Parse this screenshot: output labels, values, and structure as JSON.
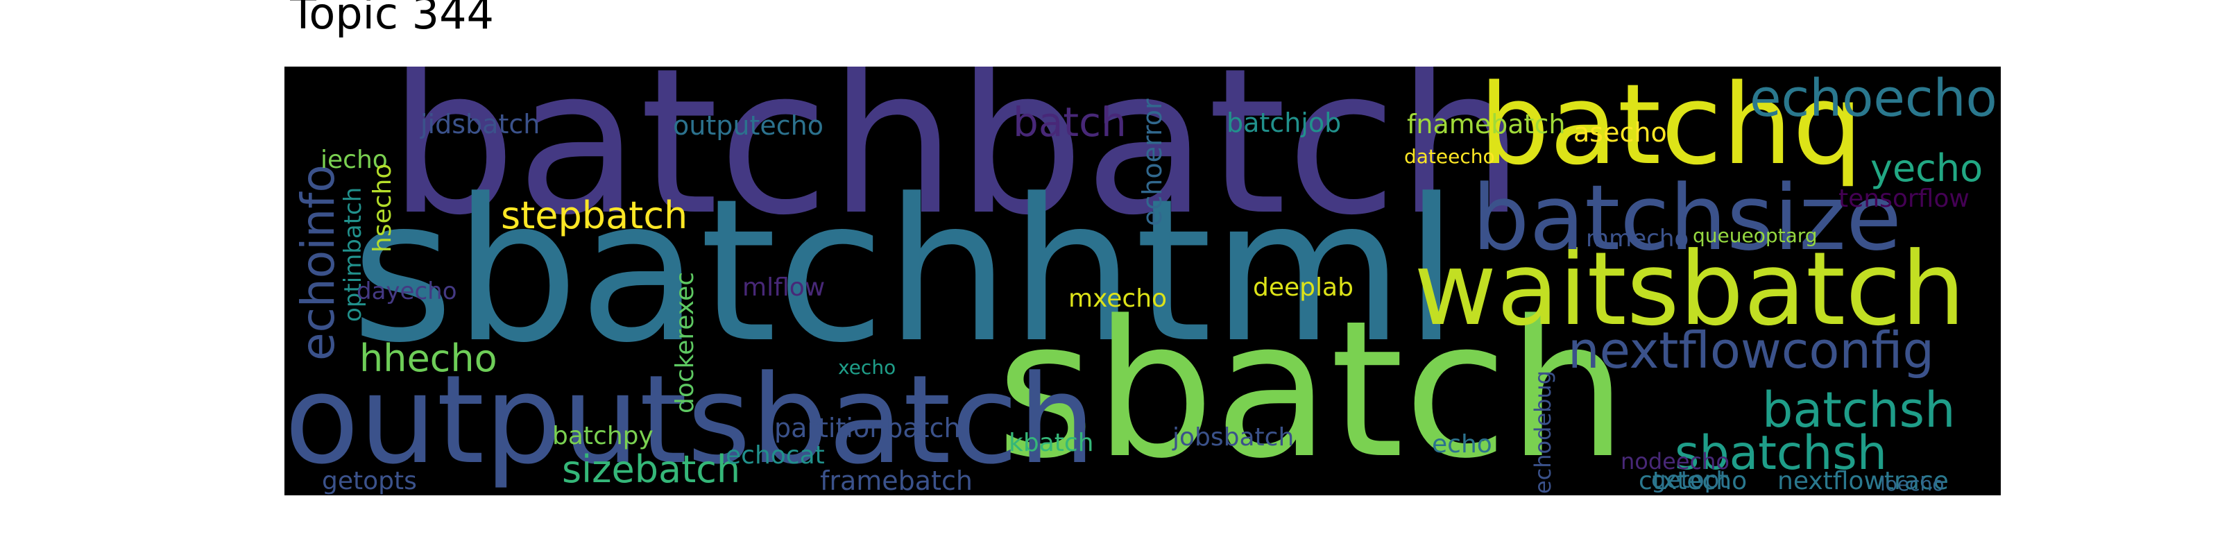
{
  "title": "Topic 344",
  "words": [
    {
      "text": "batchbatch",
      "color": "#443983",
      "weight": 100,
      "rotate": false
    },
    {
      "text": "sbatchhtml",
      "color": "#2c728e",
      "weight": 95,
      "rotate": false
    },
    {
      "text": "sbatch",
      "color": "#7ad151",
      "weight": 92,
      "rotate": false
    },
    {
      "text": "outputsbatch",
      "color": "#3b528b",
      "weight": 62,
      "rotate": false
    },
    {
      "text": "batchq",
      "color": "#dde318",
      "weight": 58,
      "rotate": false
    },
    {
      "text": "waitsbatch",
      "color": "#c2df23",
      "weight": 50,
      "rotate": false
    },
    {
      "text": "batchsize",
      "color": "#3b528b",
      "weight": 46,
      "rotate": false
    },
    {
      "text": "echoinfo",
      "color": "#3b528b",
      "weight": 28,
      "rotate": true
    },
    {
      "text": "echoecho",
      "color": "#2a788e",
      "weight": 26,
      "rotate": false
    },
    {
      "text": "nextflowconfig",
      "color": "#3b528b",
      "weight": 26,
      "rotate": false
    },
    {
      "text": "batchsh",
      "color": "#1f9e89",
      "weight": 25,
      "rotate": false
    },
    {
      "text": "sbatchsh",
      "color": "#1f9e89",
      "weight": 24,
      "rotate": false
    },
    {
      "text": "stepbatch",
      "color": "#fde725",
      "weight": 20,
      "rotate": false
    },
    {
      "text": "hhecho",
      "color": "#6ece58",
      "weight": 20,
      "rotate": false
    },
    {
      "text": "sizebatch",
      "color": "#35b779",
      "weight": 20,
      "rotate": false
    },
    {
      "text": "yecho",
      "color": "#22a884",
      "weight": 19,
      "rotate": false
    },
    {
      "text": "batch",
      "color": "#482878",
      "weight": 22,
      "rotate": false
    },
    {
      "text": "batchjob",
      "color": "#21918c",
      "weight": 14,
      "rotate": false
    },
    {
      "text": "fnamebatch",
      "color": "#a0da39",
      "weight": 14,
      "rotate": false
    },
    {
      "text": "asecho",
      "color": "#fde725",
      "weight": 13,
      "rotate": false
    },
    {
      "text": "jidsbatch",
      "color": "#3b528b",
      "weight": 14,
      "rotate": false
    },
    {
      "text": "outputecho",
      "color": "#2c728e",
      "weight": 14,
      "rotate": false
    },
    {
      "text": "iecho",
      "color": "#7ad151",
      "weight": 13,
      "rotate": false
    },
    {
      "text": "hsecho",
      "color": "#b5de2b",
      "weight": 13,
      "rotate": true
    },
    {
      "text": "optimbatch",
      "color": "#21918c",
      "weight": 13,
      "rotate": true
    },
    {
      "text": "echoerror",
      "color": "#31688e",
      "weight": 14,
      "rotate": true
    },
    {
      "text": "dateecho",
      "color": "#fde725",
      "weight": 10,
      "rotate": false
    },
    {
      "text": "tensorflow",
      "color": "#440154",
      "weight": 13,
      "rotate": false
    },
    {
      "text": "mmecho",
      "color": "#3b528b",
      "weight": 12,
      "rotate": false
    },
    {
      "text": "queueoptarg",
      "color": "#95d840",
      "weight": 10,
      "rotate": false
    },
    {
      "text": "dayecho",
      "color": "#443983",
      "weight": 13,
      "rotate": false
    },
    {
      "text": "mlflow",
      "color": "#482878",
      "weight": 13,
      "rotate": false
    },
    {
      "text": "mxecho",
      "color": "#dde318",
      "weight": 13,
      "rotate": false
    },
    {
      "text": "deeplab",
      "color": "#dde318",
      "weight": 13,
      "rotate": false
    },
    {
      "text": "dockerexec",
      "color": "#5ec962",
      "weight": 14,
      "rotate": true
    },
    {
      "text": "xecho",
      "color": "#1f9e89",
      "weight": 10,
      "rotate": false
    },
    {
      "text": "partitionbatch",
      "color": "#3b528b",
      "weight": 14,
      "rotate": false
    },
    {
      "text": "batchpy",
      "color": "#7ad151",
      "weight": 13,
      "rotate": false
    },
    {
      "text": "echocat",
      "color": "#21918c",
      "weight": 14,
      "rotate": false
    },
    {
      "text": "kbatch",
      "color": "#35b779",
      "weight": 13,
      "rotate": false
    },
    {
      "text": "jobsbatch",
      "color": "#3b528b",
      "weight": 13,
      "rotate": false
    },
    {
      "text": "echo",
      "color": "#2c728e",
      "weight": 12,
      "rotate": false
    },
    {
      "text": "echodebug",
      "color": "#3b528b",
      "weight": 12,
      "rotate": true
    },
    {
      "text": "nodeecho",
      "color": "#482878",
      "weight": 12,
      "rotate": false
    },
    {
      "text": "getopt",
      "color": "#2c728e",
      "weight": 13,
      "rotate": false
    },
    {
      "text": "ctxtecho",
      "color": "#2a788e",
      "weight": 14,
      "rotate": false
    },
    {
      "text": "nextflowtrace",
      "color": "#2a788e",
      "weight": 14,
      "rotate": false
    },
    {
      "text": "getopts",
      "color": "#3b528b",
      "weight": 14,
      "rotate": false
    },
    {
      "text": "framebatch",
      "color": "#3b528b",
      "weight": 14,
      "rotate": false
    },
    {
      "text": "loecho",
      "color": "#31688e",
      "weight": 10,
      "rotate": false
    }
  ]
}
